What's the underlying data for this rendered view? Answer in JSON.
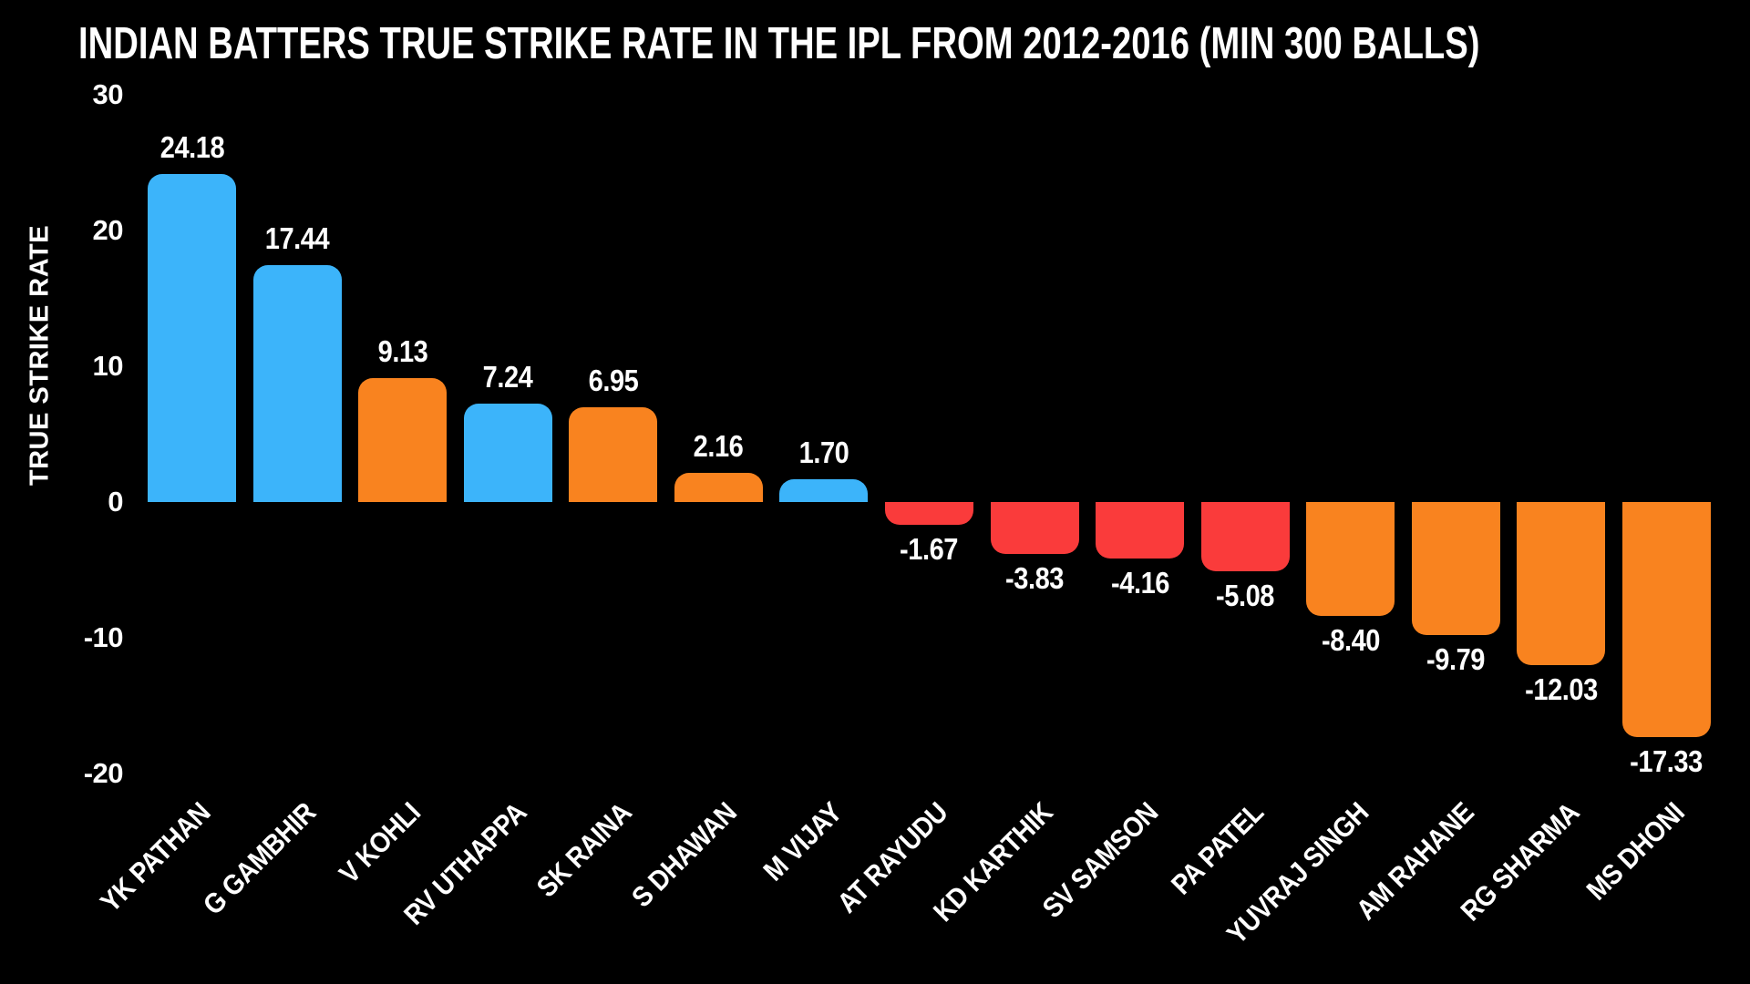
{
  "title": "INDIAN BATTERS TRUE STRIKE RATE IN THE IPL FROM 2012-2016 (MIN 300 BALLS)",
  "colors": {
    "background": "#000000",
    "text": "#ffffff",
    "blue": "#3cb4fa",
    "orange": "#f9831f",
    "red": "#fa3b3b"
  },
  "chart_data": {
    "type": "bar",
    "title": "INDIAN BATTERS TRUE STRIKE RATE IN THE IPL FROM 2012-2016 (MIN 300 BALLS)",
    "xlabel": "",
    "ylabel": "TRUE STRIKE RATE",
    "ylim": [
      -20,
      30
    ],
    "grid": false,
    "legend": false,
    "ytick_labels": [
      "30",
      "20",
      "10",
      "0",
      "-10",
      "-20"
    ],
    "categories": [
      "YK PATHAN",
      "G GAMBHIR",
      "V KOHLI",
      "RV UTHAPPA",
      "SK RAINA",
      "S DHAWAN",
      "M VIJAY",
      "AT RAYUDU",
      "KD KARTHIK",
      "SV SAMSON",
      "PA PATEL",
      "YUVRAJ SINGH",
      "AM RAHANE",
      "RG SHARMA",
      "MS DHONI"
    ],
    "values": [
      24.18,
      17.44,
      9.13,
      7.24,
      6.95,
      2.16,
      1.7,
      -1.67,
      -3.83,
      -4.16,
      -5.08,
      -8.4,
      -9.79,
      -12.03,
      -17.33
    ],
    "value_labels": [
      "24.18",
      "17.44",
      "9.13",
      "7.24",
      "6.95",
      "2.16",
      "1.70",
      "-1.67",
      "-3.83",
      "-4.16",
      "-5.08",
      "-8.40",
      "-9.79",
      "-12.03",
      "-17.33"
    ],
    "bar_colors": [
      "blue",
      "blue",
      "orange",
      "blue",
      "orange",
      "orange",
      "blue",
      "red",
      "red",
      "red",
      "red",
      "orange",
      "orange",
      "orange",
      "orange"
    ]
  }
}
